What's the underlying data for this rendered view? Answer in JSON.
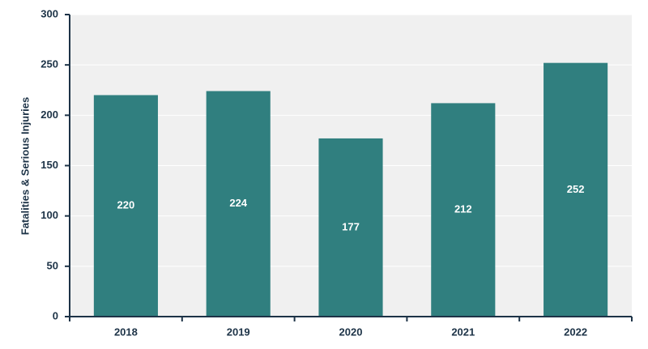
{
  "chart_data": {
    "type": "bar",
    "y_label": "Fatalities & Serious Injuries",
    "categories": [
      "2018",
      "2019",
      "2020",
      "2021",
      "2022"
    ],
    "values": [
      220,
      224,
      177,
      212,
      252
    ],
    "color": "#307f7f",
    "ylim": [
      0,
      300
    ],
    "yticks": [
      0,
      50,
      100,
      150,
      200,
      250,
      300
    ],
    "grid": true
  }
}
